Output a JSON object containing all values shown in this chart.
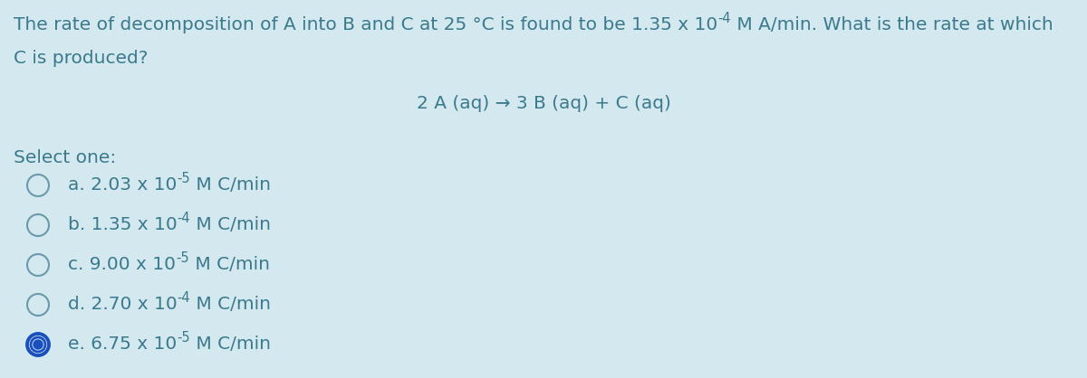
{
  "background_color": "#d4e8ef",
  "text_color": "#3a7a8c",
  "question_line1": "The rate of decomposition of A into B and C at 25 °C is found to be 1.35 x 10",
  "question_exp1": "-4",
  "question_line1b": " M A/min. What is the rate at which",
  "question_line2": "C is produced?",
  "equation": "2 A (aq) → 3 B (aq) + C (aq)",
  "select_one": "Select one:",
  "options": [
    {
      "label": "a. 2.03 x 10",
      "exp": "-5",
      "rest": " M C/min",
      "selected": false
    },
    {
      "label": "b. 1.35 x 10",
      "exp": "-4",
      "rest": " M C/min",
      "selected": false
    },
    {
      "label": "c. 9.00 x 10",
      "exp": "-5",
      "rest": " M C/min",
      "selected": false
    },
    {
      "label": "d. 2.70 x 10",
      "exp": "-4",
      "rest": " M C/min",
      "selected": false
    },
    {
      "label": "e. 6.75 x 10",
      "exp": "-5",
      "rest": " M C/min",
      "selected": true
    }
  ],
  "font_size_question": 14.5,
  "font_size_equation": 14.5,
  "font_size_options": 14.5,
  "font_size_select": 14.5,
  "circle_color_selected_outer": "#1a4fbf",
  "circle_color_selected_inner": "#1a4fbf",
  "circle_color_unselected": "#6a9aaa"
}
